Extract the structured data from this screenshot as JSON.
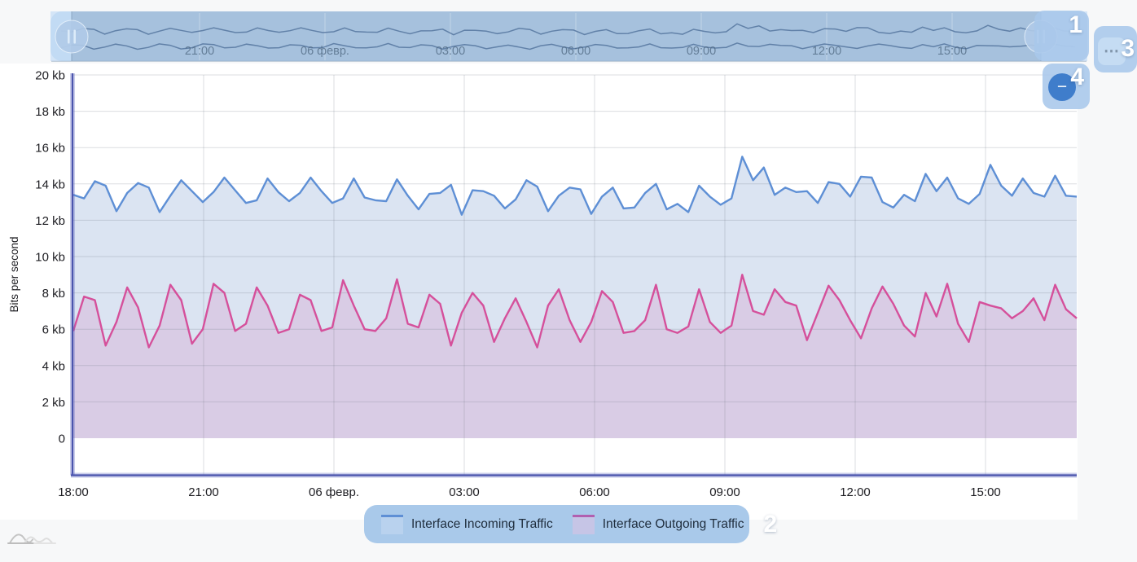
{
  "page": {
    "background_color": "#f7f8f9",
    "plot_background": "#ffffff"
  },
  "navigator": {
    "time_labels": [
      "21:00",
      "06 февр.",
      "03:00",
      "06:00",
      "09:00",
      "12:00",
      "15:00"
    ],
    "handle_icon": "pause-bars",
    "background_color": "#b7d3ef",
    "selected_color": "#a6c1dd",
    "line_color": "#5a7aa2"
  },
  "chart": {
    "y_axis_title": "Bits per second",
    "y_tick_labels": [
      "0",
      "2 kb",
      "4 kb",
      "6 kb",
      "8 kb",
      "10 kb",
      "12 kb",
      "14 kb",
      "16 kb",
      "18 kb",
      "20 kb"
    ],
    "x_tick_labels": [
      "18:00",
      "21:00",
      "06 февр.",
      "03:00",
      "06:00",
      "09:00",
      "12:00",
      "15:00"
    ],
    "axis_color": "#4b55ad"
  },
  "chart_data": {
    "type": "area",
    "title": "",
    "xlabel": "",
    "ylabel": "Bits per second",
    "y_unit": "kb",
    "ylim": [
      0,
      20
    ],
    "x_start": "18:00",
    "x_interval_minutes": 15,
    "x_tick_labels": [
      "18:00",
      "21:00",
      "06 февр.",
      "03:00",
      "06:00",
      "09:00",
      "12:00",
      "15:00"
    ],
    "grid": true,
    "legend_position": "bottom",
    "series": [
      {
        "name": "Interface Incoming Traffic",
        "line_color": "#5e8fd5",
        "fill_color": "#dbe4f2",
        "values": [
          13.4,
          13.2,
          14.15,
          13.9,
          12.5,
          13.5,
          14.05,
          13.8,
          12.45,
          13.35,
          14.2,
          13.6,
          13.0,
          13.55,
          14.35,
          13.65,
          12.95,
          13.1,
          14.3,
          13.55,
          13.05,
          13.5,
          14.35,
          13.6,
          12.95,
          13.2,
          14.3,
          13.25,
          13.1,
          13.05,
          14.25,
          13.35,
          12.6,
          13.45,
          13.5,
          13.95,
          12.3,
          13.65,
          13.6,
          13.35,
          12.65,
          13.15,
          14.2,
          13.85,
          12.5,
          13.35,
          13.8,
          13.7,
          12.35,
          13.3,
          13.8,
          12.65,
          12.7,
          13.5,
          14.0,
          12.6,
          12.9,
          12.45,
          13.9,
          13.3,
          12.85,
          13.2,
          15.5,
          14.2,
          14.9,
          13.4,
          13.8,
          13.55,
          13.6,
          12.95,
          14.1,
          14.0,
          13.3,
          14.4,
          14.35,
          13.0,
          12.7,
          13.4,
          13.05,
          14.55,
          13.6,
          14.35,
          13.2,
          12.9,
          13.45,
          15.05,
          13.9,
          13.35,
          14.3,
          13.5,
          13.3,
          14.45,
          13.35,
          13.3
        ]
      },
      {
        "name": "Interface Outgoing Traffic",
        "line_color": "#d5509b",
        "fill_color": "#d9cce5",
        "values": [
          5.9,
          7.8,
          7.6,
          5.1,
          6.4,
          8.3,
          7.2,
          5.0,
          6.2,
          8.45,
          7.6,
          5.2,
          6.0,
          8.5,
          8.0,
          5.9,
          6.3,
          8.3,
          7.3,
          5.8,
          6.0,
          7.9,
          7.6,
          5.9,
          6.1,
          8.7,
          7.3,
          6.0,
          5.9,
          6.6,
          8.75,
          6.3,
          6.1,
          7.9,
          7.4,
          5.1,
          6.9,
          8.0,
          7.3,
          5.3,
          6.6,
          7.7,
          6.4,
          5.0,
          7.3,
          8.2,
          6.5,
          5.3,
          6.4,
          8.1,
          7.5,
          5.8,
          5.9,
          6.5,
          8.45,
          6.0,
          5.8,
          6.15,
          8.2,
          6.4,
          5.8,
          6.2,
          9.0,
          7.0,
          6.8,
          8.2,
          7.5,
          7.3,
          5.4,
          6.9,
          8.4,
          7.6,
          6.5,
          5.5,
          7.15,
          8.35,
          7.4,
          6.2,
          5.6,
          8.0,
          6.7,
          8.5,
          6.3,
          5.3,
          7.5,
          7.3,
          7.15,
          6.6,
          7.0,
          7.7,
          6.5,
          8.45,
          7.1,
          6.6
        ]
      }
    ]
  },
  "legend": {
    "items": [
      {
        "label": "Interface Incoming Traffic",
        "swatch_fill": "#b9d2ee",
        "swatch_border": "#5e8fd5"
      },
      {
        "label": "Interface Outgoing Traffic",
        "swatch_fill": "#c6c5e6",
        "swatch_border": "#b160b0"
      }
    ]
  },
  "callouts": {
    "one": "1",
    "two": "2",
    "three": "3",
    "four": "4"
  },
  "controls": {
    "more_icon": "⋯",
    "zoom_out_icon": "−"
  }
}
